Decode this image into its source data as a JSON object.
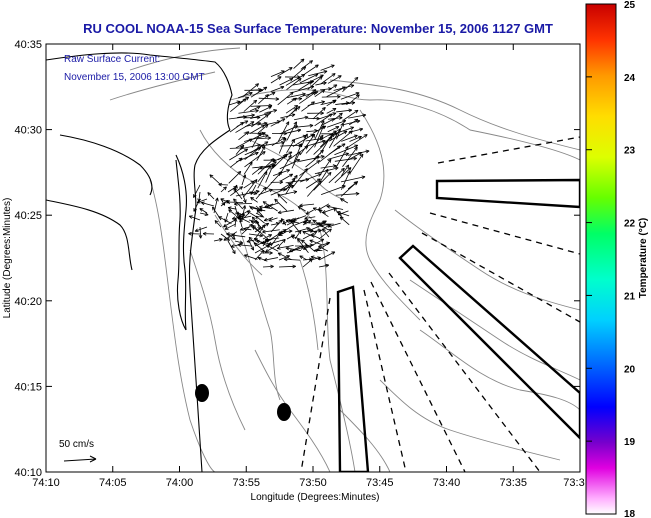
{
  "header": {
    "title": "RU COOL  NOAA-15  Sea Surface Temperature:  November 15, 2006 1127 GMT",
    "subtitle_line1": "Raw Surface Current:",
    "subtitle_line2": "November 15, 2006 13:00 GMT"
  },
  "axes": {
    "x_label": "Longitude (Degrees:Minutes)",
    "y_label": "Latitude (Degrees:Minutes)",
    "x_ticks": [
      "74:10",
      "74:05",
      "74:00",
      "73:55",
      "73:50",
      "73:45",
      "73:40",
      "73:35",
      "73:3"
    ],
    "y_ticks": [
      "40:35",
      "40:30",
      "40:25",
      "40:20",
      "40:15",
      "40:10"
    ]
  },
  "scale": {
    "label": "50 cm/s"
  },
  "colorbar": {
    "label": "Temperature (°C)",
    "ticks": [
      "25",
      "24",
      "23",
      "22",
      "21",
      "20",
      "19",
      "18"
    ]
  },
  "colors": {
    "title": "#1a1aa6",
    "land_outline": "#000000",
    "bathymetry": "#888888"
  }
}
